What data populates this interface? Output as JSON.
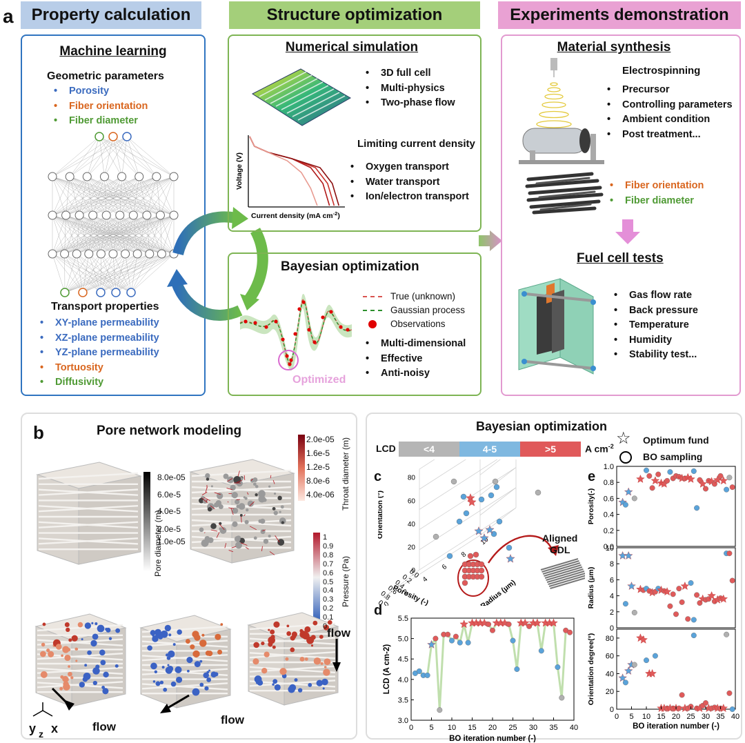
{
  "panel_a": {
    "letter": "a",
    "header_property": "Property calculation",
    "header_structure": "Structure optimization",
    "header_experiments": "Experiments demonstration",
    "ml": {
      "title": "Machine learning",
      "geo_title": "Geometric parameters",
      "geo_items": [
        {
          "text": "Porosity",
          "color": "blue"
        },
        {
          "text": "Fiber orientation",
          "color": "orange"
        },
        {
          "text": "Fiber diameter",
          "color": "green"
        }
      ],
      "transport_title": "Transport properties",
      "transport_items": [
        {
          "text": "XY-plane permeability",
          "color": "blue"
        },
        {
          "text": "XZ-plane permeability",
          "color": "blue"
        },
        {
          "text": "YZ-plane permeability",
          "color": "blue"
        },
        {
          "text": "Tortuosity",
          "color": "orange"
        },
        {
          "text": "Diffusivity",
          "color": "green"
        }
      ]
    },
    "numsim": {
      "title": "Numerical simulation",
      "items": [
        "3D full cell",
        "Multi-physics",
        "Two-phase flow"
      ],
      "lcd_title": "Limiting current density",
      "lcd_items": [
        "Oxygen transport",
        "Water transport",
        "Ion/electron transport"
      ],
      "ylabel": "Voltage (V)",
      "xlabel": "Current density (mA cm",
      "xlabel_sup": "-2",
      "xlabel_end": ")"
    },
    "bayes": {
      "title": "Bayesian optimization",
      "legend": [
        "True (unknown)",
        "Gaussian process",
        "Observations"
      ],
      "items": [
        "Multi-dimensional",
        "Effective",
        "Anti-noisy"
      ],
      "optimized": "Optimized"
    },
    "synthesis": {
      "title": "Material synthesis",
      "electro": "Electrospinning",
      "items": [
        "Precursor",
        "Controlling parameters",
        "Ambient condition",
        "Post treatment..."
      ],
      "fiber_items": [
        {
          "text": "Fiber orientation",
          "color": "orange"
        },
        {
          "text": "Fiber diameter",
          "color": "green"
        }
      ]
    },
    "fuelcell": {
      "title": "Fuel cell tests",
      "items": [
        "Gas flow rate",
        "Back pressure",
        "Temperature",
        "Humidity",
        "Stability test..."
      ]
    }
  },
  "panel_b": {
    "letter": "b",
    "title": "Pore network modeling",
    "pore_bar": {
      "label": "Pore diameter (m)",
      "ticks": [
        "8.0e-05",
        "6.0e-5",
        "4.0e-5",
        "2.0e-5",
        "1.0e-05"
      ]
    },
    "throat_bar": {
      "label": "Throat diameter (m)",
      "ticks": [
        "2.0e-05",
        "1.6e-5",
        "1.2e-5",
        "8.0e-6",
        "4.0e-06"
      ]
    },
    "pressure_bar": {
      "label": "Pressure (Pa)",
      "ticks": [
        "1",
        "0.9",
        "0.8",
        "0.7",
        "0.6",
        "0.5",
        "0.4",
        "0.3",
        "0.2",
        "0.1",
        "0"
      ]
    },
    "flow": "flow",
    "axes": {
      "y": "y",
      "z": "z",
      "x": "x"
    }
  },
  "panel_right": {
    "title": "Bayesian optimization",
    "lcd_label": "LCD",
    "lcd_bins": [
      {
        "text": "<4",
        "color": "#b5b5b5"
      },
      {
        "text": "4-5",
        "color": "#7fb8e0"
      },
      {
        "text": ">5",
        "color": "#e0595a"
      }
    ],
    "unit": "A cm",
    "unit_sup": "-2",
    "legend_star": "Optimum fund",
    "legend_circle": "BO sampling",
    "letters": {
      "c": "c",
      "d": "d",
      "e": "e"
    },
    "aligned": "Aligned",
    "gdl": "GDL"
  },
  "chart_data": [
    {
      "type": "line",
      "id": "polarization",
      "xlabel": "Current density (mA cm-2)",
      "ylabel": "Voltage (V)",
      "series": [
        {
          "x": [
            0,
            5,
            20,
            45,
            65,
            78,
            85
          ],
          "y": [
            1.0,
            0.86,
            0.77,
            0.68,
            0.55,
            0.32,
            0.0
          ]
        },
        {
          "x": [
            0,
            5,
            20,
            45,
            70,
            83,
            90
          ],
          "y": [
            1.0,
            0.86,
            0.77,
            0.68,
            0.55,
            0.32,
            0.0
          ]
        },
        {
          "x": [
            0,
            5,
            20,
            45,
            75,
            88,
            95
          ],
          "y": [
            1.0,
            0.86,
            0.77,
            0.68,
            0.55,
            0.32,
            0.0
          ]
        },
        {
          "x": [
            0,
            5,
            20,
            40,
            55,
            65,
            72
          ],
          "y": [
            1.0,
            0.86,
            0.77,
            0.65,
            0.48,
            0.25,
            0.0
          ]
        }
      ],
      "colors": [
        "#b01818",
        "#c8302a",
        "#8b0e0e",
        "#e89a90"
      ]
    },
    {
      "type": "scatter",
      "id": "3d_scatter",
      "xlabel": "Porosity (-)",
      "ylabel": "Orientation (°)",
      "zlabel": "Radius (μm)",
      "porosity_ticks": [
        "0.0",
        "0.2",
        "0.4",
        "0.6",
        "0.8",
        "1.0"
      ],
      "radius_ticks": [
        "0",
        "2",
        "4",
        "6",
        "8",
        "10"
      ],
      "orientation_ticks": [
        "0",
        "20",
        "40",
        "60",
        "80"
      ]
    },
    {
      "type": "line",
      "id": "lcd_vs_iter",
      "xlabel": "BO iteration number (-)",
      "ylabel": "LCD (A cm-2)",
      "xlim": [
        0,
        40
      ],
      "ylim": [
        3.0,
        5.5
      ],
      "xticks": [
        "0",
        "5",
        "10",
        "15",
        "20",
        "25",
        "30",
        "35",
        "40"
      ],
      "yticks": [
        "3.0",
        "3.5",
        "4.0",
        "4.5",
        "5.0",
        "5.5"
      ],
      "x": [
        1,
        2,
        3,
        4,
        5,
        6,
        7,
        8,
        9,
        10,
        11,
        12,
        13,
        14,
        15,
        16,
        17,
        18,
        19,
        20,
        21,
        22,
        23,
        24,
        25,
        26,
        27,
        28,
        29,
        30,
        31,
        32,
        33,
        34,
        35,
        36,
        37,
        38,
        39
      ],
      "y": [
        4.15,
        4.2,
        4.1,
        4.1,
        4.85,
        5.0,
        3.25,
        5.1,
        5.1,
        4.95,
        5.05,
        4.9,
        5.35,
        4.9,
        5.38,
        5.38,
        5.38,
        5.38,
        5.35,
        5.2,
        5.38,
        5.38,
        5.38,
        5.35,
        4.95,
        4.25,
        5.38,
        5.38,
        5.3,
        5.38,
        5.38,
        4.7,
        5.38,
        5.38,
        5.38,
        4.3,
        3.55,
        5.2,
        5.15
      ],
      "kind": [
        "b",
        "b",
        "b",
        "b",
        "bs",
        "r",
        "g",
        "r",
        "r",
        "b",
        "r",
        "b",
        "rs",
        "b",
        "rs",
        "rs",
        "rs",
        "rs",
        "r",
        "r",
        "rs",
        "rs",
        "rs",
        "r",
        "b",
        "b",
        "rs",
        "rs",
        "r",
        "rs",
        "rs",
        "b",
        "rs",
        "rs",
        "rs",
        "b",
        "g",
        "r",
        "r"
      ]
    },
    {
      "type": "scatter",
      "id": "params_vs_iter",
      "xlabel": "BO iteration number (-)",
      "xticks": [
        "0",
        "5",
        "10",
        "15",
        "20",
        "25",
        "30",
        "35",
        "40"
      ],
      "panels": [
        {
          "ylabel": "Porosity(-)",
          "ylim": [
            0.0,
            1.0
          ],
          "yticks": [
            "0.0",
            "0.2",
            "0.4",
            "0.6",
            "0.8",
            "1.0"
          ],
          "points": [
            [
              2,
              0.55,
              "bs"
            ],
            [
              3,
              0.52,
              "b"
            ],
            [
              4,
              0.68,
              "bs"
            ],
            [
              6,
              0.6,
              "g"
            ],
            [
              8,
              0.84,
              "rs"
            ],
            [
              10,
              0.95,
              "b"
            ],
            [
              11,
              0.88,
              "r"
            ],
            [
              12,
              0.73,
              "r"
            ],
            [
              13,
              0.82,
              "rs"
            ],
            [
              14,
              0.9,
              "r"
            ],
            [
              15,
              0.79,
              "rs"
            ],
            [
              16,
              0.78,
              "rs"
            ],
            [
              17,
              0.82,
              "r"
            ],
            [
              18,
              0.93,
              "b"
            ],
            [
              19,
              0.85,
              "r"
            ],
            [
              20,
              0.88,
              "r"
            ],
            [
              21,
              0.87,
              "r"
            ],
            [
              22,
              0.85,
              "rs"
            ],
            [
              23,
              0.85,
              "r"
            ],
            [
              24,
              0.86,
              "rs"
            ],
            [
              25,
              0.84,
              "rs"
            ],
            [
              26,
              0.94,
              "b"
            ],
            [
              27,
              0.48,
              "b"
            ],
            [
              28,
              0.83,
              "r"
            ],
            [
              29,
              0.78,
              "rs"
            ],
            [
              30,
              0.72,
              "r"
            ],
            [
              31,
              0.82,
              "r"
            ],
            [
              32,
              0.81,
              "rs"
            ],
            [
              33,
              0.78,
              "r"
            ],
            [
              34,
              0.83,
              "rs"
            ],
            [
              35,
              0.88,
              "r"
            ],
            [
              36,
              0.82,
              "rs"
            ],
            [
              37,
              0.71,
              "b"
            ],
            [
              38,
              0.86,
              "g"
            ],
            [
              39,
              0.74,
              "r"
            ]
          ]
        },
        {
          "ylabel": "Radius (μm)",
          "ylim": [
            0,
            10
          ],
          "yticks": [
            "0",
            "2",
            "4",
            "6",
            "8",
            "10"
          ],
          "points": [
            [
              2,
              9.0,
              "bs"
            ],
            [
              3,
              3.0,
              "b"
            ],
            [
              4,
              9.0,
              "bs"
            ],
            [
              5,
              5.2,
              "bs"
            ],
            [
              6,
              1.9,
              "g"
            ],
            [
              8,
              4.8,
              "rs"
            ],
            [
              9,
              4.7,
              "r"
            ],
            [
              10,
              4.9,
              "b"
            ],
            [
              11,
              4.6,
              "r"
            ],
            [
              12,
              4.4,
              "rs"
            ],
            [
              13,
              4.5,
              "r"
            ],
            [
              14,
              4.9,
              "b"
            ],
            [
              15,
              4.7,
              "rs"
            ],
            [
              16,
              4.6,
              "r"
            ],
            [
              17,
              4.5,
              "rs"
            ],
            [
              18,
              2.7,
              "r"
            ],
            [
              19,
              4.2,
              "r"
            ],
            [
              20,
              1.7,
              "r"
            ],
            [
              21,
              4.9,
              "r"
            ],
            [
              22,
              3.2,
              "r"
            ],
            [
              23,
              5.2,
              "rs"
            ],
            [
              24,
              1.1,
              "r"
            ],
            [
              25,
              5.6,
              "b"
            ],
            [
              26,
              1.0,
              "b"
            ],
            [
              27,
              4.1,
              "r"
            ],
            [
              28,
              3.1,
              "r"
            ],
            [
              29,
              3.6,
              "rs"
            ],
            [
              30,
              3.5,
              "r"
            ],
            [
              31,
              3.6,
              "r"
            ],
            [
              32,
              4.0,
              "rs"
            ],
            [
              33,
              3.3,
              "r"
            ],
            [
              34,
              3.5,
              "rs"
            ],
            [
              35,
              3.7,
              "r"
            ],
            [
              36,
              3.6,
              "rs"
            ],
            [
              37,
              9.3,
              "b"
            ],
            [
              38,
              9.3,
              "r"
            ],
            [
              39,
              5.9,
              "r"
            ]
          ]
        },
        {
          "ylabel": "Orientation degree(°)",
          "ylim": [
            0,
            90
          ],
          "yticks": [
            "0",
            "20",
            "40",
            "60",
            "80"
          ],
          "points": [
            [
              2,
              35,
              "bs"
            ],
            [
              3,
              30,
              "b"
            ],
            [
              4,
              43,
              "bs"
            ],
            [
              5,
              50,
              "bs"
            ],
            [
              6,
              50,
              "g"
            ],
            [
              8,
              80,
              "rs"
            ],
            [
              9,
              78,
              "rs"
            ],
            [
              10,
              55,
              "b"
            ],
            [
              11,
              40,
              "rs"
            ],
            [
              12,
              40,
              "rs"
            ],
            [
              13,
              60,
              "b"
            ],
            [
              15,
              1,
              "rs"
            ],
            [
              16,
              1,
              "rs"
            ],
            [
              17,
              1,
              "r"
            ],
            [
              18,
              1,
              "rs"
            ],
            [
              19,
              1,
              "r"
            ],
            [
              20,
              1,
              "rs"
            ],
            [
              21,
              1,
              "r"
            ],
            [
              22,
              16,
              "r"
            ],
            [
              23,
              1,
              "rs"
            ],
            [
              24,
              1,
              "r"
            ],
            [
              25,
              3,
              "r"
            ],
            [
              26,
              83,
              "b"
            ],
            [
              27,
              1,
              "r"
            ],
            [
              28,
              1,
              "rs"
            ],
            [
              29,
              4,
              "r"
            ],
            [
              30,
              7,
              "r"
            ],
            [
              31,
              1,
              "rs"
            ],
            [
              32,
              1,
              "r"
            ],
            [
              33,
              2,
              "r"
            ],
            [
              34,
              1,
              "rs"
            ],
            [
              35,
              1,
              "r"
            ],
            [
              36,
              1,
              "rs"
            ],
            [
              37,
              84,
              "g"
            ],
            [
              38,
              18,
              "r"
            ],
            [
              39,
              0,
              "b"
            ]
          ]
        }
      ]
    }
  ]
}
